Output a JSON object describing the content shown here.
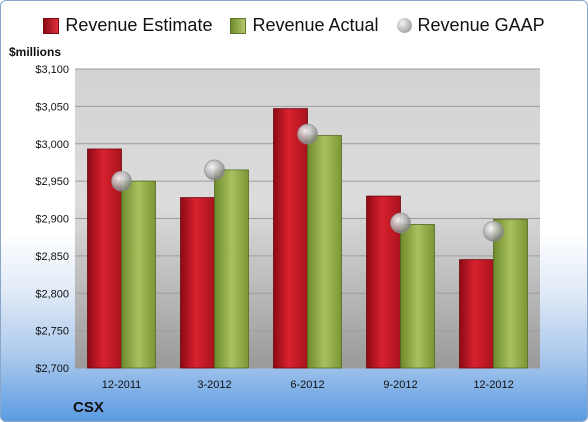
{
  "chart_data": {
    "type": "bar",
    "unit_label": "$millions",
    "ticker": "CSX",
    "categories": [
      "12-2011",
      "3-2012",
      "6-2012",
      "9-2012",
      "12-2012"
    ],
    "series": [
      {
        "name": "Revenue Estimate",
        "kind": "bar",
        "color": "#c8202c",
        "values": [
          2993,
          2928,
          3047,
          2930,
          2845
        ]
      },
      {
        "name": "Revenue Actual",
        "kind": "bar",
        "color": "#8fa84a",
        "values": [
          2950,
          2965,
          3011,
          2892,
          2899
        ]
      },
      {
        "name": "Revenue GAAP",
        "kind": "marker",
        "color": "#b0b0b0",
        "values": [
          2950,
          2965,
          3013,
          2894,
          2883
        ]
      }
    ],
    "ylim": [
      2700,
      3100
    ],
    "yticks": [
      "$2,700",
      "$2,750",
      "$2,800",
      "$2,850",
      "$2,900",
      "$2,950",
      "$3,000",
      "$3,050",
      "$3,100"
    ],
    "ytick_values": [
      2700,
      2750,
      2800,
      2850,
      2900,
      2950,
      3000,
      3050,
      3100
    ],
    "grid": true,
    "legend_position": "top"
  }
}
